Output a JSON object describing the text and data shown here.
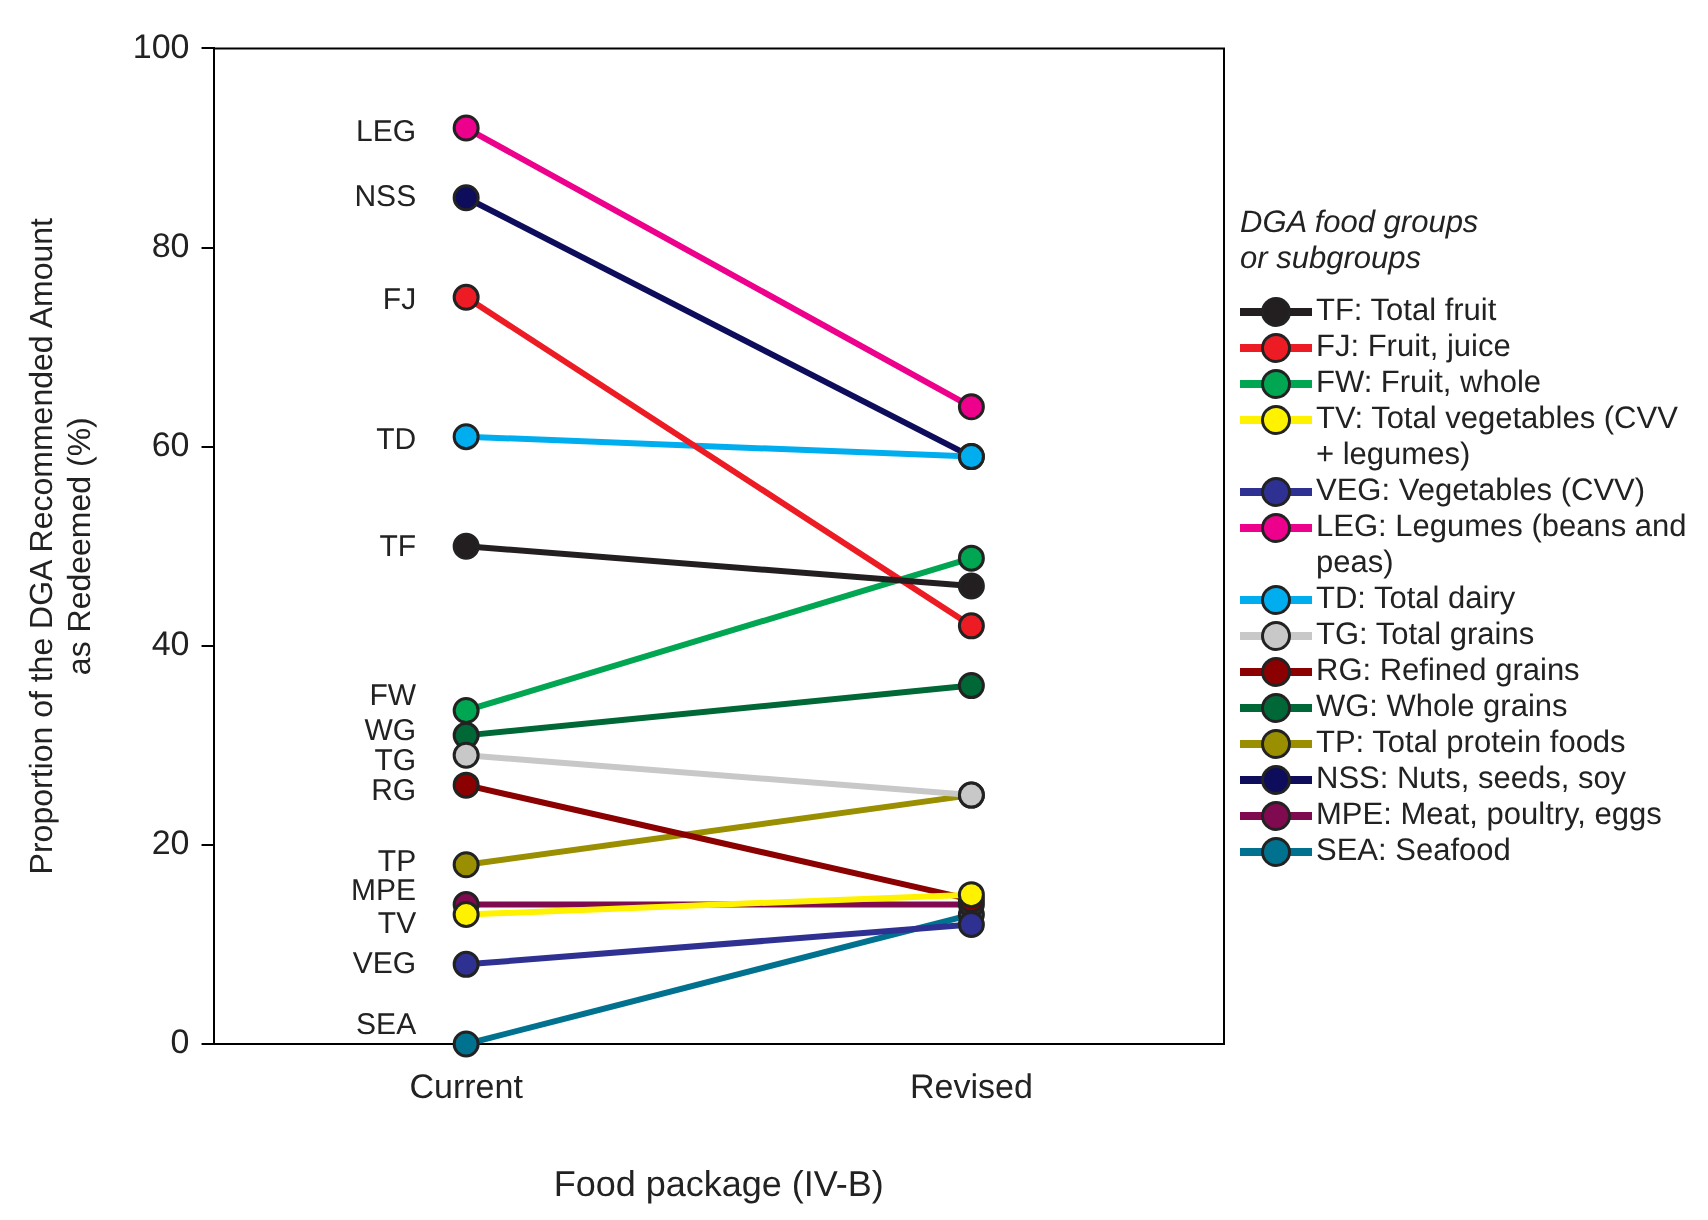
{
  "chart_data": {
    "type": "line",
    "xlabel": "Food package (IV-B)",
    "ylabel": "Proportion of the DGA Recommended Amount as Redeemed (%)",
    "legend_title": "DGA food groups or subgroups",
    "legend": "right",
    "marker": "circle",
    "line_style": "solid",
    "grid": false,
    "categories": [
      "Current",
      "Revised"
    ],
    "ylim": [
      0,
      100
    ],
    "yticks": [
      0,
      20,
      40,
      60,
      80,
      100
    ],
    "series": [
      {
        "name": "TF: Total fruit",
        "color": "#231f20",
        "values": [
          50,
          46
        ]
      },
      {
        "name": "FJ: Fruit, juice",
        "color": "#ed1c24",
        "values": [
          75,
          42
        ]
      },
      {
        "name": "FW: Fruit, whole",
        "color": "#00a651",
        "values": [
          33.5,
          48.8
        ]
      },
      {
        "name": "TV: Total vegetables (CVV + legumes)",
        "color": "#fff200",
        "values": [
          13,
          15
        ]
      },
      {
        "name": "VEG: Vegetables (CVV)",
        "color": "#2e3192",
        "values": [
          8,
          12
        ]
      },
      {
        "name": "LEG: Legumes (beans and peas)",
        "color": "#ec008c",
        "values": [
          92,
          64
        ]
      },
      {
        "name": "TD: Total dairy",
        "color": "#00aeef",
        "values": [
          61,
          59
        ]
      },
      {
        "name": "TG: Total grains",
        "color": "#c8c8c8",
        "values": [
          29,
          25
        ]
      },
      {
        "name": "RG: Refined grains",
        "color": "#8b0000",
        "values": [
          26,
          14.5
        ]
      },
      {
        "name": "WG: Whole grains",
        "color": "#006837",
        "values": [
          31,
          36
        ]
      },
      {
        "name": "TP: Total protein foods",
        "color": "#998f00",
        "values": [
          18,
          25
        ]
      },
      {
        "name": "NSS: Nuts, seeds, soy",
        "color": "#0d0d5c",
        "values": [
          85,
          59
        ]
      },
      {
        "name": "MPE: Meat, poultry, eggs",
        "color": "#7f0a4f",
        "values": [
          14,
          14
        ]
      },
      {
        "name": "SEA: Seafood",
        "color": "#00728f",
        "values": [
          0,
          13
        ]
      }
    ],
    "annotations": [
      {
        "text": "LEG",
        "x": "Current",
        "y": 91.5
      },
      {
        "text": "NSS",
        "x": "Current",
        "y": 85
      },
      {
        "text": "FJ",
        "x": "Current",
        "y": 74.7
      },
      {
        "text": "TD",
        "x": "Current",
        "y": 60.6
      },
      {
        "text": "TF",
        "x": "Current",
        "y": 49.8
      },
      {
        "text": "FW",
        "x": "Current",
        "y": 34.9
      },
      {
        "text": "WG",
        "x": "Current",
        "y": 31.4
      },
      {
        "text": "TG",
        "x": "Current",
        "y": 28.4
      },
      {
        "text": "RG",
        "x": "Current",
        "y": 25.3
      },
      {
        "text": "TP",
        "x": "Current",
        "y": 18.2
      },
      {
        "text": "MPE",
        "x": "Current",
        "y": 15.3
      },
      {
        "text": "TV",
        "x": "Current",
        "y": 12
      },
      {
        "text": "VEG",
        "x": "Current",
        "y": 8
      },
      {
        "text": "SEA",
        "x": "Current",
        "y": 1.8
      }
    ]
  }
}
